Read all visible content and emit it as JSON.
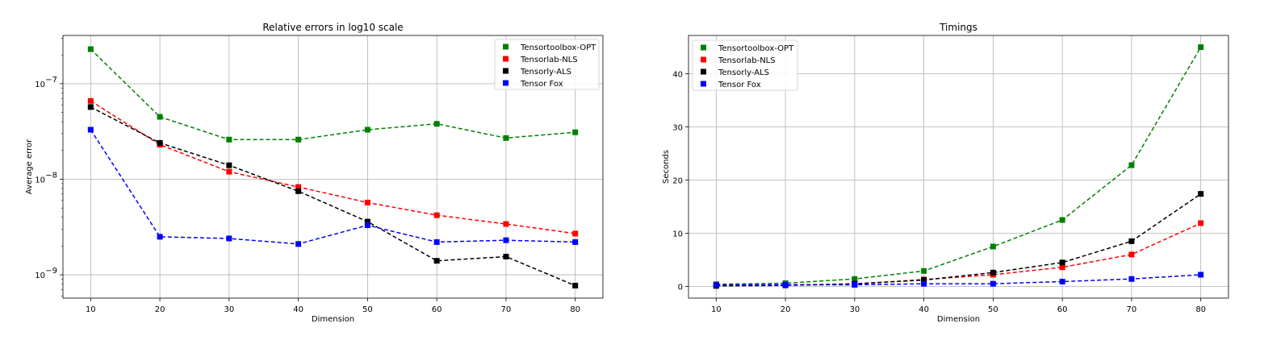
{
  "chart_data": [
    {
      "type": "line",
      "title": "Relative errors in log10 scale",
      "xlabel": "Dimension",
      "ylabel": "Average error",
      "yscale": "log",
      "x": [
        10,
        20,
        30,
        40,
        50,
        60,
        70,
        80
      ],
      "xticks": [
        "10",
        "20",
        "30",
        "40",
        "50",
        "60",
        "70",
        "80"
      ],
      "xlim": [
        6,
        84
      ],
      "ylim": [
        5.7e-10,
        3.2e-07
      ],
      "yticks": [
        {
          "value": 1e-07,
          "label": "10",
          "exp": "−7"
        },
        {
          "value": 1e-08,
          "label": "10",
          "exp": "−8"
        },
        {
          "value": 1e-09,
          "label": "10",
          "exp": "−9"
        }
      ],
      "grid": true,
      "legend_position": "top-right",
      "series": [
        {
          "name": "Tensortoolbox-OPT",
          "color": "#008000",
          "values": [
            2.3e-07,
            4.5e-08,
            2.6e-08,
            2.6e-08,
            3.3e-08,
            3.8e-08,
            2.7e-08,
            3.1e-08
          ]
        },
        {
          "name": "Tensorlab-NLS",
          "color": "#ff0000",
          "values": [
            6.6e-08,
            2.3e-08,
            1.2e-08,
            8.3e-09,
            5.7e-09,
            4.2e-09,
            3.4e-09,
            2.7e-09
          ]
        },
        {
          "name": "Tensorly-ALS",
          "color": "#000000",
          "values": [
            5.7e-08,
            2.4e-08,
            1.4e-08,
            7.5e-09,
            3.6e-09,
            1.4e-09,
            1.55e-09,
            7.7e-10
          ]
        },
        {
          "name": "Tensor Fox",
          "color": "#0000ff",
          "values": [
            3.3e-08,
            2.5e-09,
            2.4e-09,
            2.1e-09,
            3.3e-09,
            2.2e-09,
            2.3e-09,
            2.2e-09
          ]
        }
      ]
    },
    {
      "type": "line",
      "title": "Timings",
      "xlabel": "Dimension",
      "ylabel": "Seconds",
      "yscale": "linear",
      "x": [
        10,
        20,
        30,
        40,
        50,
        60,
        70,
        80
      ],
      "xticks": [
        "10",
        "20",
        "30",
        "40",
        "50",
        "60",
        "70",
        "80"
      ],
      "xlim": [
        6,
        84
      ],
      "ylim": [
        -2.2,
        47.2
      ],
      "yticks": [
        {
          "value": 0,
          "label": "0"
        },
        {
          "value": 10,
          "label": "10"
        },
        {
          "value": 20,
          "label": "20"
        },
        {
          "value": 30,
          "label": "30"
        },
        {
          "value": 40,
          "label": "40"
        }
      ],
      "grid": true,
      "legend_position": "top-left",
      "series": [
        {
          "name": "Tensortoolbox-OPT",
          "color": "#008000",
          "values": [
            0.4,
            0.6,
            1.4,
            2.9,
            7.5,
            12.5,
            22.8,
            45.0
          ]
        },
        {
          "name": "Tensorlab-NLS",
          "color": "#ff0000",
          "values": [
            0.2,
            0.3,
            0.4,
            1.3,
            2.2,
            3.6,
            6.0,
            11.9
          ]
        },
        {
          "name": "Tensorly-ALS",
          "color": "#000000",
          "values": [
            0.1,
            0.2,
            0.5,
            1.2,
            2.6,
            4.5,
            8.5,
            17.4
          ]
        },
        {
          "name": "Tensor Fox",
          "color": "#0000ff",
          "values": [
            0.3,
            0.3,
            0.3,
            0.5,
            0.5,
            0.9,
            1.4,
            2.2
          ]
        }
      ]
    }
  ]
}
